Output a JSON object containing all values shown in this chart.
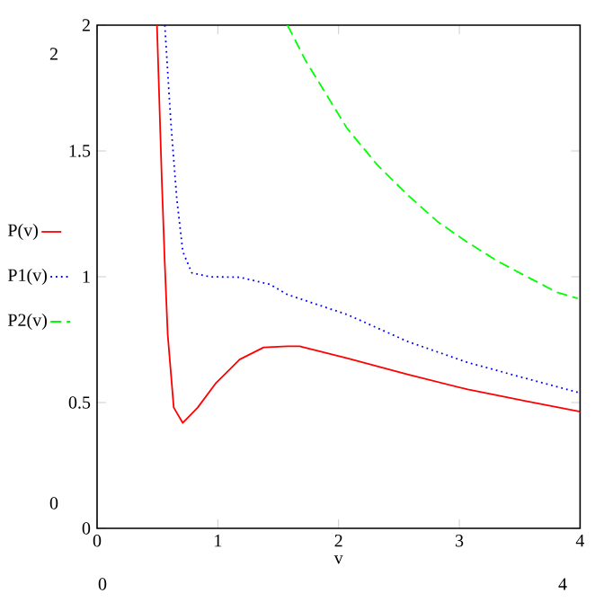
{
  "chart_data": {
    "type": "line",
    "xlabel": "v",
    "xlim": [
      0,
      4
    ],
    "ylim": [
      0,
      2
    ],
    "xticks": [
      0,
      1,
      2,
      3,
      4
    ],
    "yticks": [
      0,
      0.5,
      1,
      1.5,
      2
    ],
    "legend": "left",
    "annotations": [
      "0",
      "2",
      "0",
      "4"
    ],
    "series": [
      {
        "name": "P(v)",
        "color": "#ff0000",
        "line_style": "solid",
        "x": [
          0.496,
          0.536,
          0.561,
          0.585,
          0.635,
          0.71,
          0.833,
          0.982,
          1.18,
          1.38,
          1.577,
          1.677,
          2.07,
          2.57,
          3.07,
          3.56,
          4.0
        ],
        "values": [
          2,
          1.386,
          1.05,
          0.77,
          0.48,
          0.419,
          0.48,
          0.576,
          0.671,
          0.719,
          0.724,
          0.724,
          0.676,
          0.612,
          0.552,
          0.505,
          0.464
        ]
      },
      {
        "name": "P1(v)",
        "color": "#0000ff",
        "line_style": "dotted",
        "x": [
          0.561,
          0.61,
          0.66,
          0.71,
          0.784,
          0.933,
          1.18,
          1.43,
          1.577,
          2.07,
          2.57,
          3.07,
          3.56,
          4.0
        ],
        "values": [
          2,
          1.62,
          1.31,
          1.1,
          1.016,
          1.0,
          0.998,
          0.97,
          0.929,
          0.85,
          0.743,
          0.659,
          0.595,
          0.538
        ]
      },
      {
        "name": "P2(v)",
        "color": "#00ff00",
        "line_style": "dashed",
        "x": [
          1.577,
          1.726,
          1.875,
          2.07,
          2.32,
          2.57,
          2.82,
          3.07,
          3.31,
          3.56,
          3.81,
          3.98
        ],
        "values": [
          2,
          1.86,
          1.743,
          1.59,
          1.445,
          1.326,
          1.219,
          1.136,
          1.064,
          1.0,
          0.938,
          0.914
        ]
      }
    ]
  }
}
